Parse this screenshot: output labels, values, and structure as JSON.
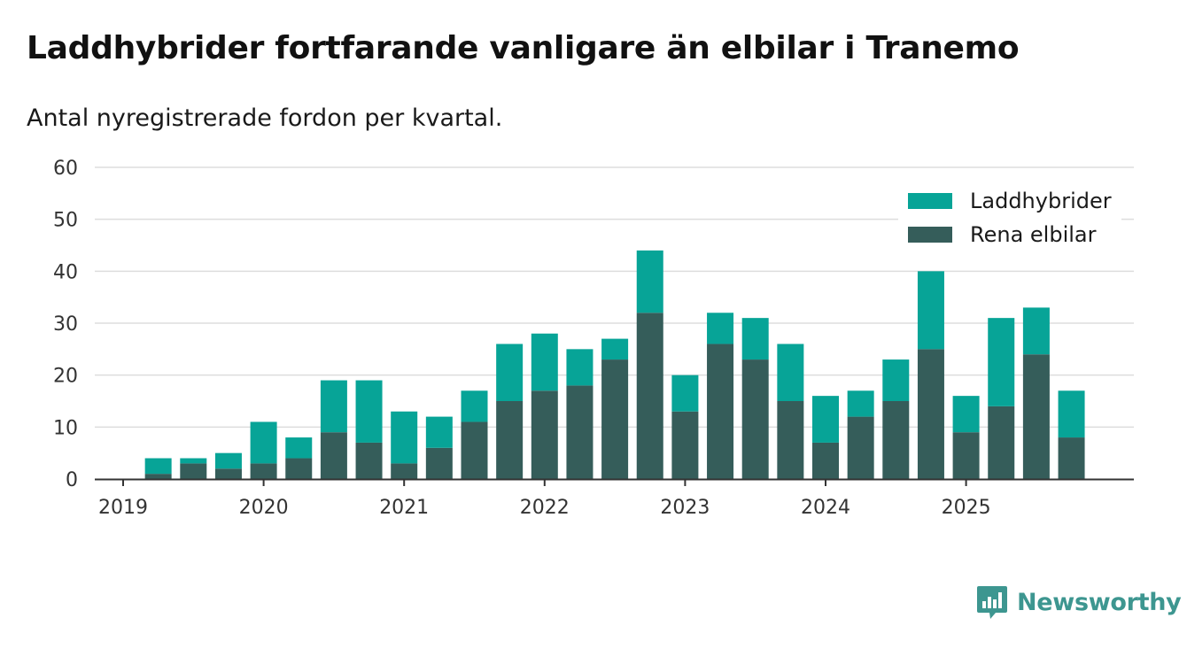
{
  "title": "Laddhybrider fortfarande vanligare än elbilar i Tranemo",
  "subtitle": "Antal nyregistrerade fordon per kvartal.",
  "brand": {
    "name": "Newsworthy",
    "icon": "newsworthy-logo-icon"
  },
  "colors": {
    "laddhybrider": "#07a497",
    "elbilar": "#355d5a",
    "grid": "#dddddd",
    "brand": "#3d9690"
  },
  "chart_data": {
    "type": "bar",
    "stacked": true,
    "title": "Laddhybrider fortfarande vanligare än elbilar i Tranemo",
    "subtitle": "Antal nyregistrerade fordon per kvartal.",
    "xlabel": "",
    "ylabel": "",
    "ylim": [
      0,
      60
    ],
    "yticks": [
      0,
      10,
      20,
      30,
      40,
      50,
      60
    ],
    "xticks": [
      "2019",
      "2020",
      "2021",
      "2022",
      "2023",
      "2024",
      "2025"
    ],
    "legend_position": "top-right",
    "categories": [
      "2019 Q1",
      "2019 Q2",
      "2019 Q3",
      "2019 Q4",
      "2020 Q1",
      "2020 Q2",
      "2020 Q3",
      "2020 Q4",
      "2021 Q1",
      "2021 Q2",
      "2021 Q3",
      "2021 Q4",
      "2022 Q1",
      "2022 Q2",
      "2022 Q3",
      "2022 Q4",
      "2023 Q1",
      "2023 Q2",
      "2023 Q3",
      "2023 Q4",
      "2024 Q1",
      "2024 Q2",
      "2024 Q3",
      "2024 Q4",
      "2025 Q1",
      "2025 Q2",
      "2025 Q3",
      "2025 Q4"
    ],
    "series": [
      {
        "name": "Rena elbilar",
        "color": "#355d5a",
        "values": [
          0,
          1,
          3,
          2,
          3,
          4,
          9,
          7,
          3,
          6,
          11,
          15,
          17,
          18,
          23,
          32,
          13,
          26,
          23,
          15,
          7,
          12,
          15,
          25,
          9,
          14,
          24,
          8
        ]
      },
      {
        "name": "Laddhybrider",
        "color": "#07a497",
        "values": [
          0,
          3,
          1,
          3,
          8,
          4,
          10,
          12,
          10,
          6,
          6,
          11,
          11,
          7,
          4,
          12,
          7,
          6,
          8,
          11,
          9,
          5,
          8,
          15,
          7,
          17,
          9,
          9
        ]
      }
    ],
    "legend": [
      "Laddhybrider",
      "Rena elbilar"
    ]
  }
}
